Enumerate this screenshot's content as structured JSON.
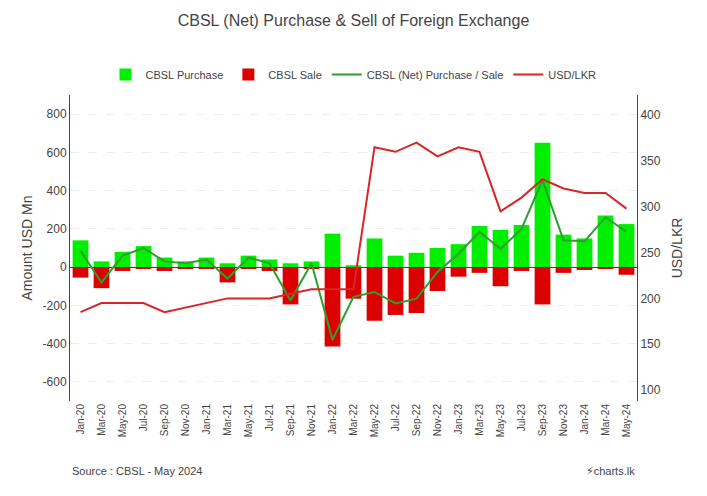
{
  "chart_data": {
    "type": "bar",
    "title": "CBSL (Net) Purchase & Sell of Foreign Exchange",
    "ylabel": "Amount USD Mn",
    "y2label": "USD/LKR",
    "annotations": [
      "Source : CBSL - May 2024",
      "⚡charts.lk"
    ],
    "categories": [
      "Jan-20",
      "Mar-20",
      "May-20",
      "Jul-20",
      "Sep-20",
      "Nov-20",
      "Jan-21",
      "Mar-21",
      "May-21",
      "Jul-21",
      "Sep-21",
      "Nov-21",
      "Jan-22",
      "Mar-22",
      "May-22",
      "Jul-22",
      "Sep-22",
      "Nov-22",
      "Jan-23",
      "Mar-23",
      "May-23",
      "Jul-23",
      "Sep-23",
      "Nov-23",
      "Jan-24",
      "Mar-24",
      "May-24"
    ],
    "series": [
      {
        "name": "CBSL Purchase",
        "color": "#00ee00",
        "values": [
          140,
          30,
          80,
          110,
          50,
          30,
          50,
          20,
          60,
          40,
          20,
          30,
          175,
          10,
          150,
          60,
          75,
          100,
          120,
          215,
          195,
          220,
          650,
          170,
          150,
          270,
          225
        ]
      },
      {
        "name": "CBSL Sale",
        "color": "#dd0000",
        "values": [
          -55,
          -110,
          -20,
          -10,
          -20,
          -10,
          -10,
          -80,
          -10,
          -20,
          -195,
          -10,
          -415,
          -165,
          -280,
          -250,
          -240,
          -125,
          -50,
          -30,
          -100,
          -20,
          -195,
          -30,
          -15,
          -10,
          -40
        ]
      },
      {
        "name": "CBSL (Net) Purchase / Sale",
        "type": "line",
        "values": [
          85,
          -80,
          60,
          100,
          30,
          20,
          40,
          -60,
          50,
          20,
          -175,
          20,
          -380,
          -155,
          -130,
          -190,
          -165,
          -25,
          70,
          185,
          95,
          200,
          455,
          140,
          135,
          260,
          185
        ]
      },
      {
        "name": "USD/LKR",
        "type": "line",
        "axis": "y2",
        "values": [
          185,
          195,
          195,
          195,
          185,
          190,
          195,
          200,
          200,
          200,
          205,
          210,
          210,
          210,
          365,
          360,
          370,
          355,
          365,
          360,
          295,
          310,
          330,
          320,
          315,
          315,
          298
        ]
      }
    ],
    "ylim": [
      -700,
      900
    ],
    "yticks": [
      -600,
      -400,
      -200,
      0,
      200,
      400,
      600,
      800
    ],
    "y2lim": [
      88,
      422
    ],
    "y2ticks": [
      100,
      150,
      200,
      250,
      300,
      350,
      400
    ],
    "grid": true,
    "legend": "top"
  }
}
